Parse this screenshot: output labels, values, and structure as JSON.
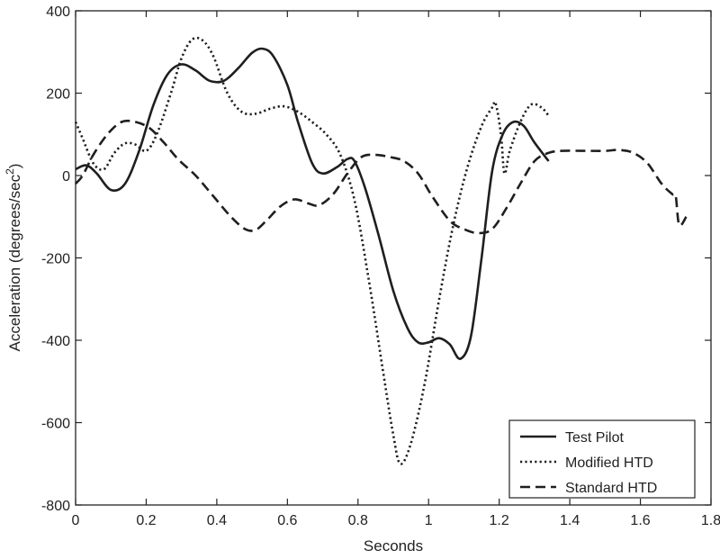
{
  "chart_data": {
    "type": "line",
    "title": "",
    "xlabel": "Seconds",
    "ylabel": "Acceleration (degrees/sec",
    "ylabel_superscript": "2",
    "ylabel_close": ")",
    "xlim": [
      0,
      1.8
    ],
    "ylim": [
      -800,
      400
    ],
    "xticks": [
      0,
      0.2,
      0.4,
      0.6,
      0.8,
      1.0,
      1.2,
      1.4,
      1.6,
      1.8
    ],
    "xtick_labels": [
      "0",
      "0.2",
      "0.4",
      "0.6",
      "0.8",
      "1",
      "1.2",
      "1.4",
      "1.6",
      "1.8"
    ],
    "yticks": [
      400,
      200,
      0,
      -200,
      -400,
      -600,
      -800
    ],
    "ytick_labels": [
      "400",
      "200",
      "0",
      "-200",
      "-400",
      "-600",
      "-800"
    ],
    "grid": false,
    "legend_position": "bottom-right",
    "series": [
      {
        "name": "Test Pilot",
        "style": "solid",
        "color": "#1f1f1f",
        "points": [
          [
            0,
            15
          ],
          [
            0.03,
            25
          ],
          [
            0.06,
            5
          ],
          [
            0.1,
            -35
          ],
          [
            0.14,
            -20
          ],
          [
            0.18,
            60
          ],
          [
            0.22,
            170
          ],
          [
            0.26,
            245
          ],
          [
            0.3,
            270
          ],
          [
            0.34,
            255
          ],
          [
            0.38,
            230
          ],
          [
            0.42,
            230
          ],
          [
            0.46,
            260
          ],
          [
            0.5,
            298
          ],
          [
            0.53,
            308
          ],
          [
            0.56,
            290
          ],
          [
            0.6,
            220
          ],
          [
            0.63,
            130
          ],
          [
            0.67,
            30
          ],
          [
            0.7,
            5
          ],
          [
            0.74,
            20
          ],
          [
            0.77,
            40
          ],
          [
            0.79,
            35
          ],
          [
            0.82,
            -30
          ],
          [
            0.86,
            -150
          ],
          [
            0.9,
            -280
          ],
          [
            0.94,
            -370
          ],
          [
            0.97,
            -405
          ],
          [
            1.0,
            -405
          ],
          [
            1.03,
            -395
          ],
          [
            1.06,
            -410
          ],
          [
            1.09,
            -445
          ],
          [
            1.12,
            -390
          ],
          [
            1.15,
            -200
          ],
          [
            1.18,
            10
          ],
          [
            1.21,
            100
          ],
          [
            1.24,
            130
          ],
          [
            1.27,
            120
          ],
          [
            1.3,
            80
          ],
          [
            1.34,
            35
          ]
        ]
      },
      {
        "name": "Modified HTD",
        "style": "dotted",
        "color": "#1f1f1f",
        "points": [
          [
            0,
            130
          ],
          [
            0.02,
            90
          ],
          [
            0.05,
            30
          ],
          [
            0.08,
            15
          ],
          [
            0.11,
            55
          ],
          [
            0.14,
            78
          ],
          [
            0.17,
            75
          ],
          [
            0.2,
            60
          ],
          [
            0.23,
            100
          ],
          [
            0.27,
            200
          ],
          [
            0.3,
            285
          ],
          [
            0.33,
            330
          ],
          [
            0.36,
            328
          ],
          [
            0.39,
            290
          ],
          [
            0.43,
            200
          ],
          [
            0.47,
            155
          ],
          [
            0.51,
            150
          ],
          [
            0.55,
            162
          ],
          [
            0.59,
            168
          ],
          [
            0.63,
            155
          ],
          [
            0.67,
            130
          ],
          [
            0.71,
            100
          ],
          [
            0.75,
            50
          ],
          [
            0.79,
            -60
          ],
          [
            0.83,
            -250
          ],
          [
            0.87,
            -470
          ],
          [
            0.9,
            -630
          ],
          [
            0.92,
            -700
          ],
          [
            0.95,
            -650
          ],
          [
            0.99,
            -500
          ],
          [
            1.03,
            -300
          ],
          [
            1.07,
            -120
          ],
          [
            1.11,
            20
          ],
          [
            1.15,
            120
          ],
          [
            1.18,
            165
          ],
          [
            1.19,
            175
          ],
          [
            1.205,
            100
          ],
          [
            1.215,
            5
          ],
          [
            1.23,
            60
          ],
          [
            1.26,
            130
          ],
          [
            1.29,
            172
          ],
          [
            1.32,
            165
          ],
          [
            1.34,
            145
          ]
        ]
      },
      {
        "name": "Standard HTD",
        "style": "dashed",
        "color": "#1f1f1f",
        "points": [
          [
            0,
            -20
          ],
          [
            0.02,
            0
          ],
          [
            0.05,
            50
          ],
          [
            0.09,
            100
          ],
          [
            0.13,
            130
          ],
          [
            0.17,
            130
          ],
          [
            0.21,
            115
          ],
          [
            0.25,
            80
          ],
          [
            0.29,
            40
          ],
          [
            0.34,
            0
          ],
          [
            0.39,
            -50
          ],
          [
            0.44,
            -100
          ],
          [
            0.48,
            -130
          ],
          [
            0.51,
            -132
          ],
          [
            0.54,
            -110
          ],
          [
            0.58,
            -75
          ],
          [
            0.62,
            -58
          ],
          [
            0.66,
            -68
          ],
          [
            0.69,
            -72
          ],
          [
            0.73,
            -45
          ],
          [
            0.77,
            5
          ],
          [
            0.81,
            45
          ],
          [
            0.85,
            50
          ],
          [
            0.89,
            45
          ],
          [
            0.93,
            35
          ],
          [
            0.97,
            5
          ],
          [
            1.01,
            -50
          ],
          [
            1.06,
            -110
          ],
          [
            1.1,
            -130
          ],
          [
            1.14,
            -140
          ],
          [
            1.18,
            -130
          ],
          [
            1.22,
            -80
          ],
          [
            1.26,
            -20
          ],
          [
            1.3,
            35
          ],
          [
            1.34,
            55
          ],
          [
            1.38,
            60
          ],
          [
            1.44,
            60
          ],
          [
            1.5,
            60
          ],
          [
            1.54,
            62
          ],
          [
            1.58,
            55
          ],
          [
            1.62,
            30
          ],
          [
            1.66,
            -20
          ],
          [
            1.69,
            -45
          ],
          [
            1.7,
            -50
          ],
          [
            1.71,
            -120
          ],
          [
            1.73,
            -100
          ]
        ]
      }
    ]
  }
}
